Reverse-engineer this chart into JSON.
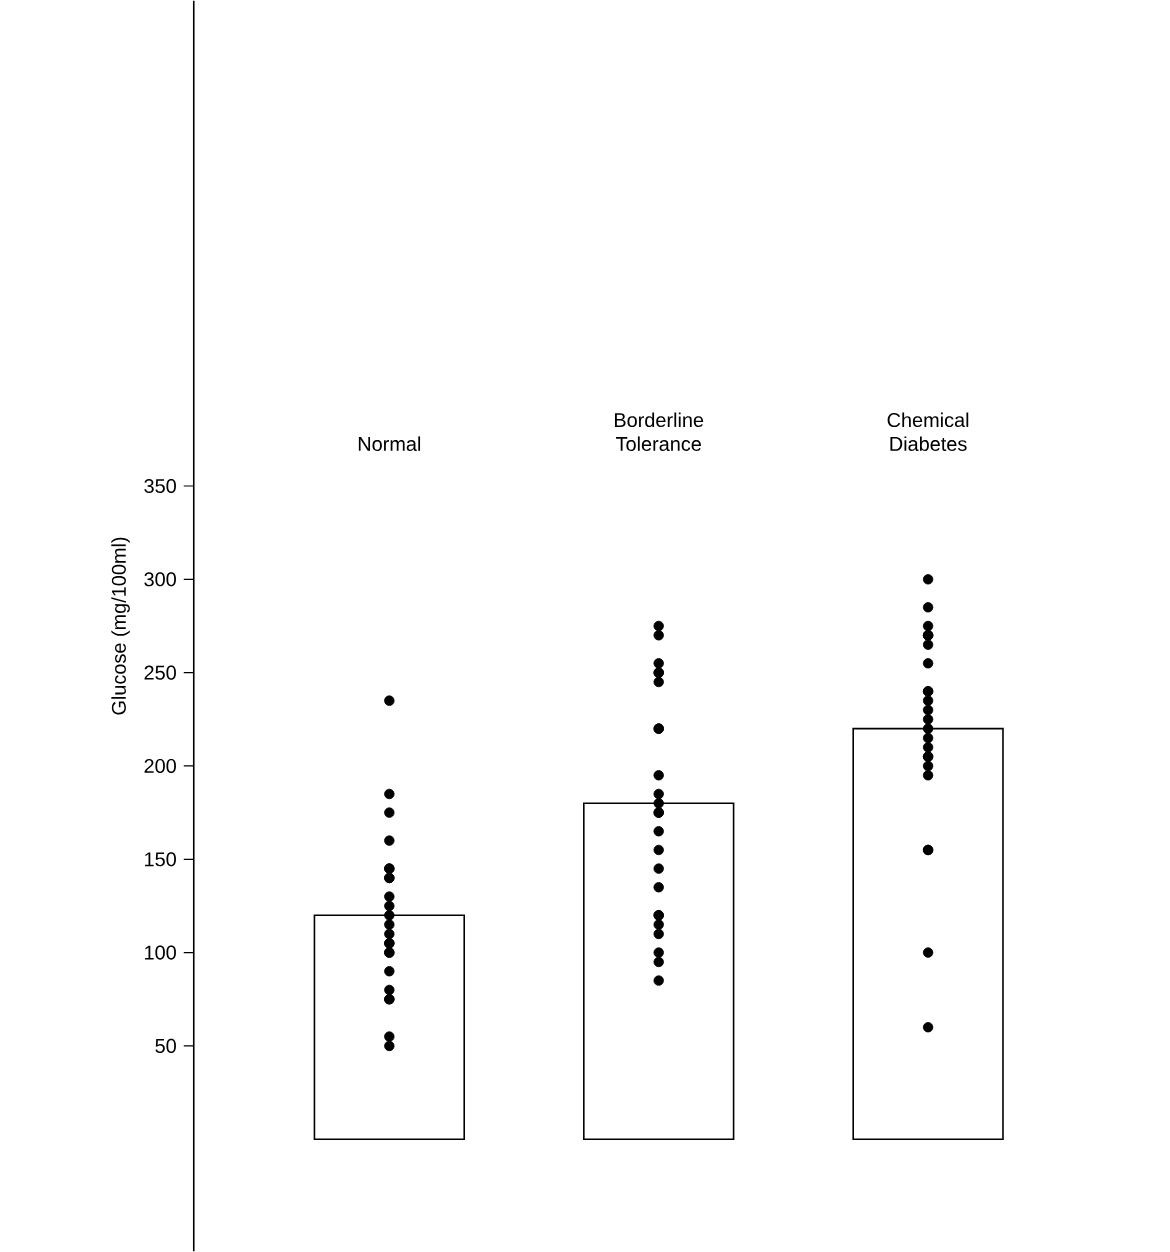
{
  "chart_data": {
    "type": "bar",
    "ylabel": "Glucose (mg/100ml)",
    "categories": [
      "Normal",
      "Borderline Tolerance",
      "Chemical Diabetes"
    ],
    "ylim": [
      -60,
      610
    ],
    "yticks": [
      50,
      100,
      150,
      200,
      250,
      300,
      350
    ],
    "series": [
      {
        "color": "#ffffff",
        "values": [
          120,
          180,
          220
        ]
      },
      {
        "type": "scatter",
        "color": "#000000",
        "marker": "circle",
        "x": [
          "Normal",
          "Normal",
          "Normal",
          "Normal",
          "Normal",
          "Normal",
          "Normal",
          "Normal",
          "Normal",
          "Normal",
          "Normal",
          "Normal",
          "Normal",
          "Normal",
          "Normal",
          "Normal",
          "Normal",
          "Normal",
          "Normal",
          "Normal",
          "Normal",
          "Normal",
          "Normal",
          "Borderline Tolerance",
          "Borderline Tolerance",
          "Borderline Tolerance",
          "Borderline Tolerance",
          "Borderline Tolerance",
          "Borderline Tolerance",
          "Borderline Tolerance",
          "Borderline Tolerance",
          "Borderline Tolerance",
          "Borderline Tolerance",
          "Borderline Tolerance",
          "Borderline Tolerance",
          "Borderline Tolerance",
          "Borderline Tolerance",
          "Borderline Tolerance",
          "Borderline Tolerance",
          "Borderline Tolerance",
          "Borderline Tolerance",
          "Borderline Tolerance",
          "Borderline Tolerance",
          "Borderline Tolerance",
          "Borderline Tolerance",
          "Borderline Tolerance",
          "Borderline Tolerance",
          "Chemical Diabetes",
          "Chemical Diabetes",
          "Chemical Diabetes",
          "Chemical Diabetes",
          "Chemical Diabetes",
          "Chemical Diabetes",
          "Chemical Diabetes",
          "Chemical Diabetes",
          "Chemical Diabetes",
          "Chemical Diabetes",
          "Chemical Diabetes",
          "Chemical Diabetes",
          "Chemical Diabetes",
          "Chemical Diabetes",
          "Chemical Diabetes",
          "Chemical Diabetes",
          "Chemical Diabetes",
          "Chemical Diabetes",
          "Chemical Diabetes",
          "Chemical Diabetes",
          "Chemical Diabetes",
          "Chemical Diabetes",
          "Chemical Diabetes",
          "Chemical Diabetes"
        ],
        "values": [
          235,
          185,
          175,
          160,
          145,
          145,
          140,
          140,
          130,
          125,
          120,
          115,
          110,
          105,
          105,
          100,
          100,
          90,
          80,
          75,
          75,
          55,
          50,
          275,
          270,
          255,
          250,
          250,
          245,
          220,
          220,
          195,
          185,
          180,
          175,
          175,
          165,
          155,
          145,
          135,
          120,
          120,
          115,
          110,
          100,
          95,
          85,
          300,
          285,
          275,
          270,
          270,
          270,
          265,
          255,
          240,
          240,
          235,
          230,
          225,
          220,
          215,
          210,
          205,
          205,
          200,
          195,
          155,
          155,
          100,
          60
        ]
      }
    ]
  }
}
